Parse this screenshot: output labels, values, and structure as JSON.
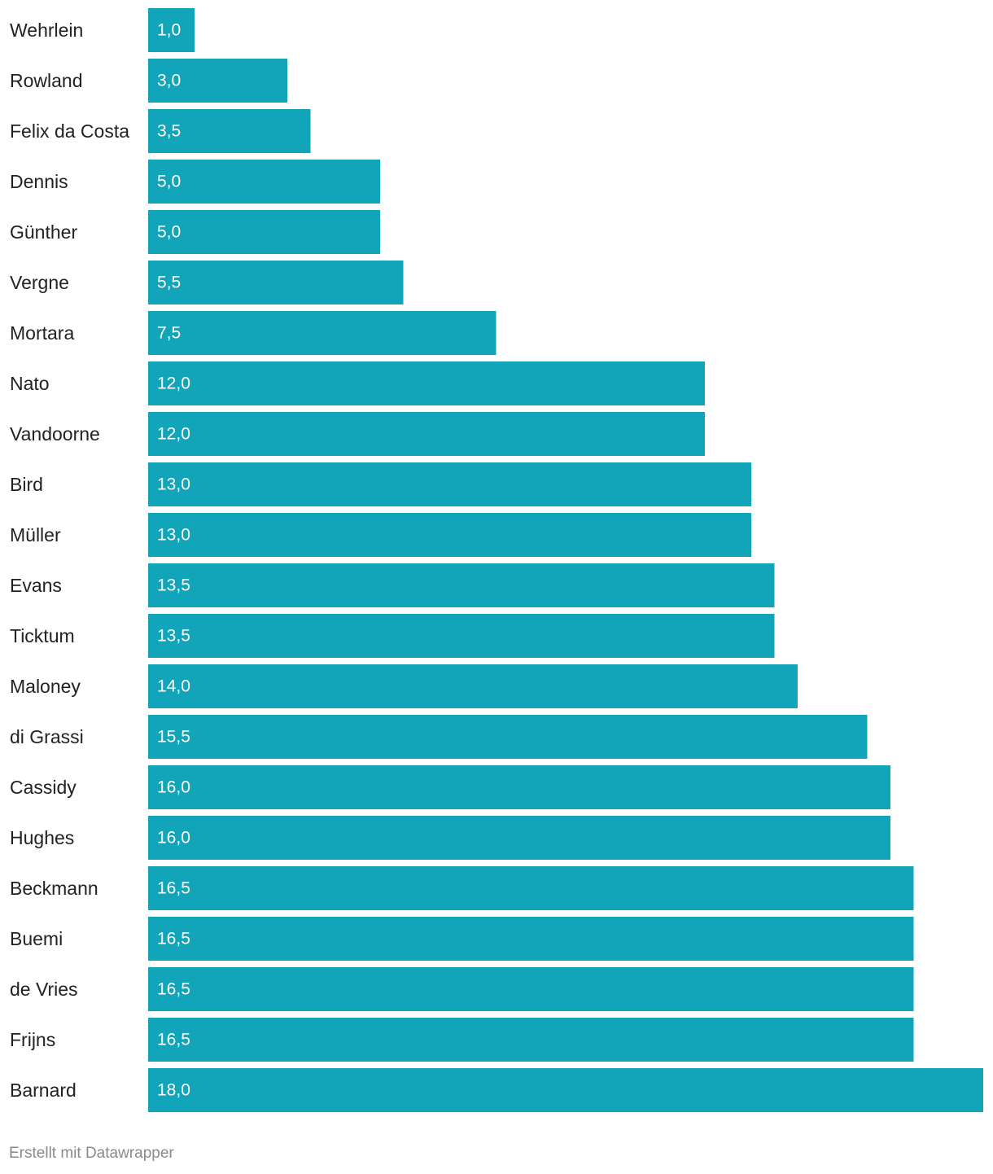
{
  "chart_data": {
    "type": "bar",
    "orientation": "horizontal",
    "categories": [
      "Wehrlein",
      "Rowland",
      "Felix da Costa",
      "Dennis",
      "Günther",
      "Vergne",
      "Mortara",
      "Nato",
      "Vandoorne",
      "Bird",
      "Müller",
      "Evans",
      "Ticktum",
      "Maloney",
      "di Grassi",
      "Cassidy",
      "Hughes",
      "Beckmann",
      "Buemi",
      "de Vries",
      "Frijns",
      "Barnard"
    ],
    "values": [
      1.0,
      3.0,
      3.5,
      5.0,
      5.0,
      5.5,
      7.5,
      12.0,
      12.0,
      13.0,
      13.0,
      13.5,
      13.5,
      14.0,
      15.5,
      16.0,
      16.0,
      16.5,
      16.5,
      16.5,
      16.5,
      18.0
    ],
    "value_labels": [
      "1,0",
      "3,0",
      "3,5",
      "5,0",
      "5,0",
      "5,5",
      "7,5",
      "12,0",
      "12,0",
      "13,0",
      "13,0",
      "13,5",
      "13,5",
      "14,0",
      "15,5",
      "16,0",
      "16,0",
      "16,5",
      "16,5",
      "16,5",
      "16,5",
      "18,0"
    ],
    "xlim": [
      0,
      18
    ],
    "bar_color": "#12a5b9",
    "title": "",
    "xlabel": "",
    "ylabel": ""
  },
  "footer": {
    "credit": "Erstellt mit Datawrapper"
  }
}
